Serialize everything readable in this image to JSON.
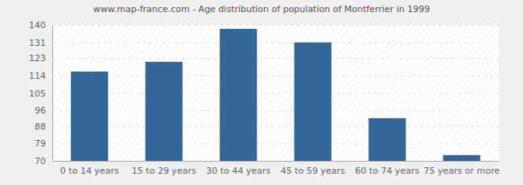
{
  "chart_data": {
    "type": "bar",
    "title": "www.map-france.com - Age distribution of population of Montferrier in 1999",
    "categories": [
      "0 to 14 years",
      "15 to 29 years",
      "30 to 44 years",
      "45 to 59 years",
      "60 to 74 years",
      "75 years or more"
    ],
    "values": [
      116,
      121,
      138,
      131,
      92,
      73
    ],
    "color": "#336699",
    "ylim": [
      70,
      140
    ],
    "yticks": [
      70,
      79,
      88,
      96,
      105,
      114,
      123,
      131,
      140
    ],
    "grid": true
  }
}
